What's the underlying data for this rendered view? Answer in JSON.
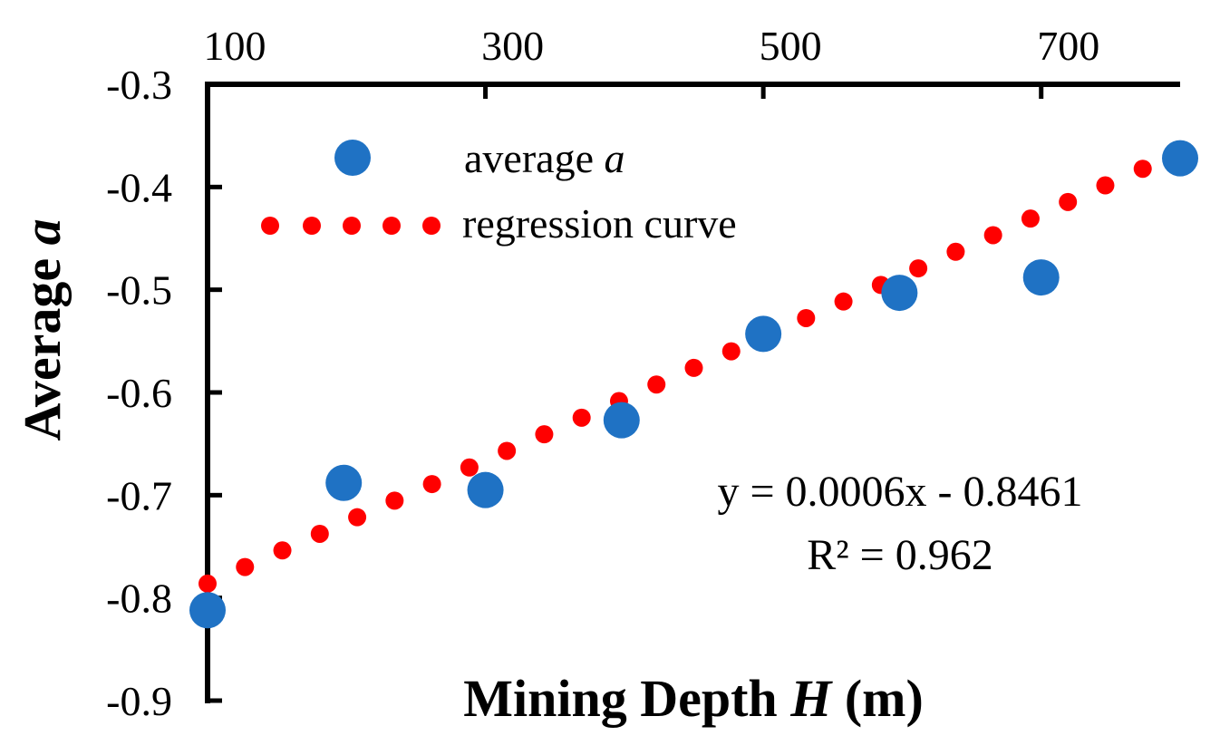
{
  "chart_data": {
    "type": "scatter",
    "title": "",
    "xlabel": "Mining Depth",
    "xlabel_var": "H",
    "xlabel_unit": "(m)",
    "ylabel": "Average",
    "ylabel_var": "a",
    "xlim": [
      100,
      800
    ],
    "ylim": [
      -0.9,
      -0.3
    ],
    "x_ticks": [
      100,
      300,
      500,
      700
    ],
    "x_tick_labels": [
      "100",
      "300",
      "500",
      "700"
    ],
    "y_ticks": [
      -0.3,
      -0.4,
      -0.5,
      -0.6,
      -0.7,
      -0.8,
      -0.9
    ],
    "y_tick_labels": [
      "-0.3",
      "-0.4",
      "-0.5",
      "-0.6",
      "-0.7",
      "-0.8",
      "-0.9"
    ],
    "x_axis_position": "top",
    "grid": false,
    "legend_position": "top-left",
    "series": [
      {
        "name": "average a",
        "legend_text": "average",
        "legend_var": "a",
        "type": "scatter",
        "color": "#1f72c4",
        "x": [
          100,
          198,
          300,
          398,
          500,
          598,
          700,
          800
        ],
        "y": [
          -0.812,
          -0.688,
          -0.695,
          -0.627,
          -0.543,
          -0.503,
          -0.488,
          -0.372
        ]
      },
      {
        "name": "regression curve",
        "legend_text": "regression curve",
        "type": "line",
        "style": "dotted",
        "color": "#ff0000",
        "slope": 0.0006,
        "intercept": -0.8461,
        "x_range": [
          100,
          800
        ]
      }
    ],
    "annotations": {
      "equation": "y = 0.0006x - 0.8461",
      "r_squared": "R² = 0.962"
    }
  }
}
